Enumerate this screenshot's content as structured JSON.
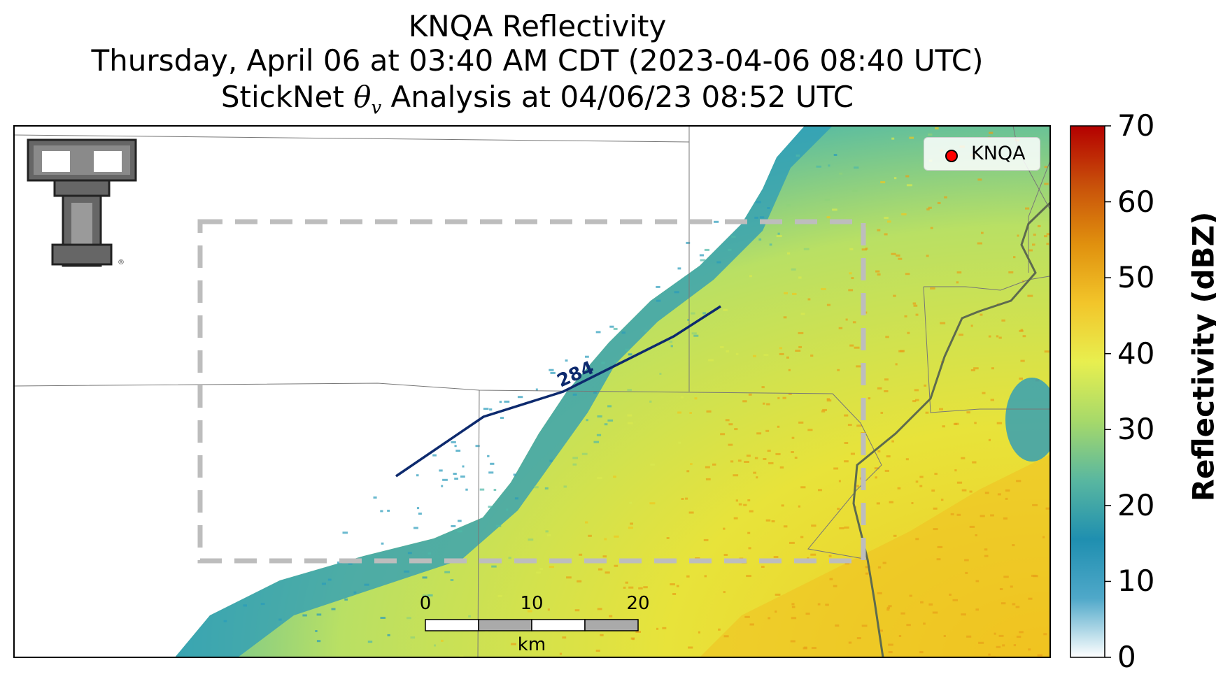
{
  "title": {
    "line1": "KNQA Reflectivity",
    "line2": "Thursday, April 06 at 03:40 AM CDT (2023-04-06 08:40 UTC)",
    "line3_pre": "StickNet ",
    "line3_symbol": "θ",
    "line3_sub": "v",
    "line3_post": " Analysis at 04/06/23 08:52 UTC"
  },
  "legend": {
    "label": "KNQA",
    "marker_color": "#ff0000"
  },
  "contour": {
    "label": "284",
    "color": "#0d2a6e"
  },
  "scale_bar": {
    "ticks": [
      "0",
      "10",
      "20"
    ],
    "unit": "km"
  },
  "colorbar": {
    "label": "Reflectivity (dBZ)",
    "ticks": [
      "70",
      "60",
      "50",
      "40",
      "30",
      "20",
      "10",
      "0"
    ],
    "min": 0,
    "max": 70,
    "colors": [
      "#ffffff",
      "#4fa8c9",
      "#1f8fb0",
      "#59b7a0",
      "#a6d96a",
      "#e8ef4f",
      "#f2c52a",
      "#e0900e",
      "#c8500a",
      "#b40000"
    ]
  },
  "logo": {
    "text": "TT"
  },
  "colors": {
    "contour": "#0d2a6e",
    "analysis_box": "#bdbdbd"
  }
}
